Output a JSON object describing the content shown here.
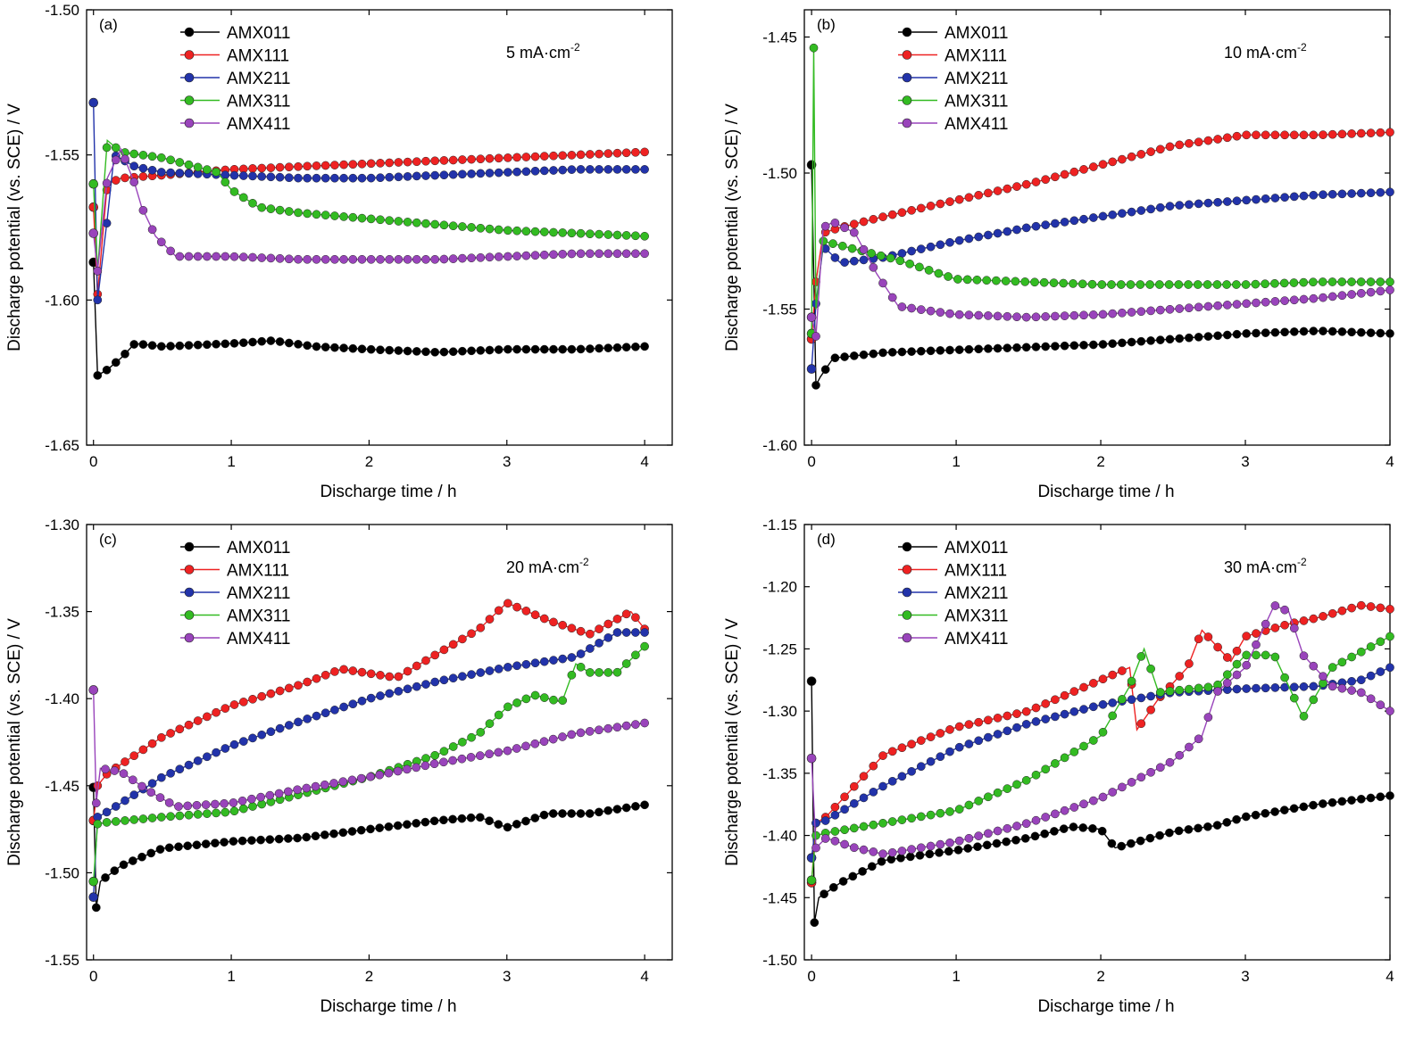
{
  "colors": {
    "AMX011": "#000000",
    "AMX111": "#ee2222",
    "AMX211": "#2233aa",
    "AMX311": "#33bb22",
    "AMX411": "#9944bb"
  },
  "chart_data": [
    {
      "type": "line",
      "panel_label": "(a)",
      "current_density": {
        "base": "5 mA·cm",
        "exponent": "-2"
      },
      "xlabel": "Discharge time / h",
      "ylabel": "Discharge potential (vs. SCE) / V",
      "xlim": [
        -0.05,
        4.2
      ],
      "ylim": [
        -1.65,
        -1.5
      ],
      "xticks": [
        0,
        1,
        2,
        3,
        4
      ],
      "yticks": [
        -1.65,
        -1.6,
        -1.55,
        -1.5
      ],
      "xtick_labels": [
        "0",
        "1",
        "2",
        "3",
        "4"
      ],
      "ytick_labels": [
        "-1.65",
        "-1.60",
        "-1.55",
        "-1.50"
      ],
      "legend_position": "top-left",
      "series": [
        {
          "name": "AMX011",
          "x": [
            0,
            0.03,
            0.1,
            0.2,
            0.3,
            0.5,
            1.0,
            1.3,
            1.6,
            2.0,
            2.5,
            3.0,
            3.5,
            4.0
          ],
          "y": [
            -1.587,
            -1.626,
            -1.624,
            -1.62,
            -1.615,
            -1.616,
            -1.615,
            -1.614,
            -1.616,
            -1.617,
            -1.618,
            -1.617,
            -1.617,
            -1.616
          ]
        },
        {
          "name": "AMX111",
          "x": [
            0,
            0.03,
            0.1,
            0.2,
            0.5,
            1.0,
            1.5,
            2.0,
            2.5,
            3.0,
            3.5,
            4.0
          ],
          "y": [
            -1.568,
            -1.598,
            -1.56,
            -1.558,
            -1.557,
            -1.555,
            -1.554,
            -1.553,
            -1.552,
            -1.551,
            -1.55,
            -1.549
          ]
        },
        {
          "name": "AMX211",
          "x": [
            0,
            0.03,
            0.1,
            0.15,
            0.3,
            0.5,
            1.0,
            1.5,
            2.0,
            2.5,
            3.0,
            3.5,
            4.0
          ],
          "y": [
            -1.532,
            -1.6,
            -1.572,
            -1.55,
            -1.554,
            -1.556,
            -1.557,
            -1.558,
            -1.558,
            -1.557,
            -1.556,
            -1.555,
            -1.555
          ]
        },
        {
          "name": "AMX311",
          "x": [
            0,
            0.03,
            0.1,
            0.2,
            0.5,
            0.9,
            1.0,
            1.2,
            1.5,
            2.0,
            2.5,
            3.0,
            3.5,
            4.0
          ],
          "y": [
            -1.56,
            -1.59,
            -1.545,
            -1.549,
            -1.551,
            -1.556,
            -1.562,
            -1.568,
            -1.57,
            -1.572,
            -1.574,
            -1.576,
            -1.577,
            -1.578
          ]
        },
        {
          "name": "AMX411",
          "x": [
            0,
            0.03,
            0.1,
            0.2,
            0.3,
            0.35,
            0.45,
            0.6,
            1.0,
            1.5,
            2.0,
            2.5,
            3.0,
            3.5,
            4.0
          ],
          "y": [
            -1.577,
            -1.59,
            -1.558,
            -1.548,
            -1.56,
            -1.568,
            -1.578,
            -1.585,
            -1.585,
            -1.586,
            -1.586,
            -1.586,
            -1.585,
            -1.584,
            -1.584
          ]
        }
      ]
    },
    {
      "type": "line",
      "panel_label": "(b)",
      "current_density": {
        "base": "10 mA·cm",
        "exponent": "-2"
      },
      "xlabel": "Discharge time / h",
      "ylabel": "Discharge potential (vs. SCE) / V",
      "xlim": [
        -0.05,
        4.0
      ],
      "ylim": [
        -1.6,
        -1.44
      ],
      "xticks": [
        0,
        1,
        2,
        3,
        4
      ],
      "yticks": [
        -1.6,
        -1.55,
        -1.5,
        -1.45
      ],
      "xtick_labels": [
        "0",
        "1",
        "2",
        "3",
        "4"
      ],
      "ytick_labels": [
        "-1.60",
        "-1.55",
        "-1.50",
        "-1.45"
      ],
      "legend_position": "top-left",
      "series": [
        {
          "name": "AMX011",
          "x": [
            0,
            0.03,
            0.06,
            0.15,
            0.5,
            1.0,
            1.5,
            2.0,
            2.5,
            3.0,
            3.5,
            4.0
          ],
          "y": [
            -1.497,
            -1.578,
            -1.575,
            -1.568,
            -1.566,
            -1.565,
            -1.564,
            -1.563,
            -1.561,
            -1.559,
            -1.558,
            -1.559
          ]
        },
        {
          "name": "AMX111",
          "x": [
            0,
            0.03,
            0.08,
            0.2,
            0.5,
            1.0,
            1.5,
            2.0,
            2.5,
            3.0,
            3.5,
            4.0
          ],
          "y": [
            -1.561,
            -1.54,
            -1.522,
            -1.52,
            -1.516,
            -1.51,
            -1.504,
            -1.497,
            -1.49,
            -1.486,
            -1.486,
            -1.485
          ]
        },
        {
          "name": "AMX211",
          "x": [
            0,
            0.03,
            0.08,
            0.2,
            0.5,
            1.0,
            1.5,
            2.0,
            2.5,
            3.0,
            3.5,
            4.0
          ],
          "y": [
            -1.572,
            -1.548,
            -1.527,
            -1.533,
            -1.531,
            -1.525,
            -1.52,
            -1.516,
            -1.512,
            -1.51,
            -1.508,
            -1.507
          ]
        },
        {
          "name": "AMX311",
          "x": [
            0,
            0.015,
            0.03,
            0.08,
            0.3,
            0.6,
            1.0,
            1.5,
            2.0,
            2.5,
            3.0,
            3.5,
            4.0
          ],
          "y": [
            -1.559,
            -1.454,
            -1.55,
            -1.525,
            -1.528,
            -1.532,
            -1.539,
            -1.54,
            -1.541,
            -1.541,
            -1.541,
            -1.54,
            -1.54
          ]
        },
        {
          "name": "AMX411",
          "x": [
            0,
            0.03,
            0.08,
            0.15,
            0.3,
            0.45,
            0.6,
            1.0,
            1.5,
            2.0,
            2.5,
            3.0,
            3.5,
            4.0
          ],
          "y": [
            -1.553,
            -1.56,
            -1.52,
            -1.518,
            -1.522,
            -1.537,
            -1.549,
            -1.552,
            -1.553,
            -1.552,
            -1.55,
            -1.548,
            -1.546,
            -1.543
          ]
        }
      ]
    },
    {
      "type": "line",
      "panel_label": "(c)",
      "current_density": {
        "base": "20 mA·cm",
        "exponent": "-2"
      },
      "xlabel": "Discharge time / h",
      "ylabel": "Discharge potential (vs. SCE) / V",
      "xlim": [
        -0.05,
        4.2
      ],
      "ylim": [
        -1.55,
        -1.3
      ],
      "xticks": [
        0,
        1,
        2,
        3,
        4
      ],
      "yticks": [
        -1.55,
        -1.5,
        -1.45,
        -1.4,
        -1.35,
        -1.3
      ],
      "xtick_labels": [
        "0",
        "1",
        "2",
        "3",
        "4"
      ],
      "ytick_labels": [
        "-1.55",
        "-1.50",
        "-1.45",
        "-1.40",
        "-1.35",
        "-1.30"
      ],
      "legend_position": "top-left",
      "series": [
        {
          "name": "AMX011",
          "x": [
            0,
            0.02,
            0.05,
            0.2,
            0.5,
            1.0,
            1.5,
            2.0,
            2.5,
            2.8,
            3.0,
            3.3,
            3.6,
            4.0
          ],
          "y": [
            -1.451,
            -1.52,
            -1.505,
            -1.496,
            -1.486,
            -1.482,
            -1.48,
            -1.475,
            -1.47,
            -1.468,
            -1.474,
            -1.466,
            -1.466,
            -1.461
          ]
        },
        {
          "name": "AMX111",
          "x": [
            0,
            0.03,
            0.1,
            0.5,
            1.0,
            1.5,
            1.8,
            2.2,
            2.5,
            2.8,
            3.0,
            3.3,
            3.6,
            3.9,
            4.0
          ],
          "y": [
            -1.47,
            -1.45,
            -1.443,
            -1.422,
            -1.404,
            -1.392,
            -1.383,
            -1.388,
            -1.374,
            -1.36,
            -1.345,
            -1.355,
            -1.363,
            -1.35,
            -1.36
          ]
        },
        {
          "name": "AMX211",
          "x": [
            0,
            0.03,
            0.1,
            0.5,
            1.0,
            1.5,
            2.0,
            2.5,
            3.0,
            3.5,
            3.8,
            4.0
          ],
          "y": [
            -1.514,
            -1.468,
            -1.465,
            -1.445,
            -1.427,
            -1.413,
            -1.4,
            -1.39,
            -1.382,
            -1.376,
            -1.362,
            -1.362
          ]
        },
        {
          "name": "AMX311",
          "x": [
            0,
            0.03,
            0.1,
            0.5,
            1.0,
            1.5,
            2.0,
            2.5,
            2.8,
            3.0,
            3.2,
            3.4,
            3.5,
            3.6,
            3.8,
            4.0
          ],
          "y": [
            -1.505,
            -1.472,
            -1.471,
            -1.468,
            -1.465,
            -1.455,
            -1.445,
            -1.432,
            -1.42,
            -1.405,
            -1.398,
            -1.402,
            -1.38,
            -1.385,
            -1.385,
            -1.37
          ]
        },
        {
          "name": "AMX411",
          "x": [
            0,
            0.02,
            0.05,
            0.2,
            0.4,
            0.6,
            1.0,
            1.5,
            2.0,
            2.5,
            3.0,
            3.5,
            4.0
          ],
          "y": [
            -1.395,
            -1.46,
            -1.44,
            -1.442,
            -1.453,
            -1.462,
            -1.46,
            -1.452,
            -1.445,
            -1.437,
            -1.43,
            -1.42,
            -1.414
          ]
        }
      ]
    },
    {
      "type": "line",
      "panel_label": "(d)",
      "current_density": {
        "base": "30 mA·cm",
        "exponent": "-2"
      },
      "xlabel": "Discharge time / h",
      "ylabel": "Discharge potential (vs. SCE) / V",
      "xlim": [
        -0.05,
        4.0
      ],
      "ylim": [
        -1.5,
        -1.15
      ],
      "xticks": [
        0,
        1,
        2,
        3,
        4
      ],
      "yticks": [
        -1.5,
        -1.45,
        -1.4,
        -1.35,
        -1.3,
        -1.25,
        -1.2,
        -1.15
      ],
      "xtick_labels": [
        "0",
        "1",
        "2",
        "3",
        "4"
      ],
      "ytick_labels": [
        "-1.50",
        "-1.45",
        "-1.40",
        "-1.35",
        "-1.30",
        "-1.25",
        "-1.20",
        "-1.15"
      ],
      "legend_position": "top-left",
      "series": [
        {
          "name": "AMX011",
          "x": [
            0,
            0.02,
            0.05,
            0.2,
            0.5,
            1.0,
            1.5,
            1.8,
            2.0,
            2.1,
            2.5,
            2.8,
            3.0,
            3.5,
            4.0
          ],
          "y": [
            -1.276,
            -1.47,
            -1.45,
            -1.438,
            -1.42,
            -1.412,
            -1.402,
            -1.393,
            -1.395,
            -1.41,
            -1.397,
            -1.392,
            -1.385,
            -1.375,
            -1.368
          ]
        },
        {
          "name": "AMX111",
          "x": [
            0,
            0.03,
            0.1,
            0.5,
            1.0,
            1.5,
            2.0,
            2.2,
            2.25,
            2.4,
            2.6,
            2.7,
            2.9,
            3.0,
            3.3,
            3.5,
            3.8,
            4.0
          ],
          "y": [
            -1.438,
            -1.39,
            -1.385,
            -1.335,
            -1.313,
            -1.3,
            -1.275,
            -1.265,
            -1.315,
            -1.29,
            -1.265,
            -1.235,
            -1.26,
            -1.24,
            -1.23,
            -1.225,
            -1.215,
            -1.218
          ]
        },
        {
          "name": "AMX211",
          "x": [
            0,
            0.03,
            0.1,
            0.5,
            1.0,
            1.5,
            2.0,
            2.5,
            3.0,
            3.5,
            3.8,
            4.0
          ],
          "y": [
            -1.418,
            -1.39,
            -1.388,
            -1.36,
            -1.33,
            -1.31,
            -1.295,
            -1.285,
            -1.282,
            -1.28,
            -1.275,
            -1.265
          ]
        },
        {
          "name": "AMX311",
          "x": [
            0,
            0.03,
            0.1,
            0.5,
            1.0,
            1.5,
            2.0,
            2.2,
            2.3,
            2.4,
            2.8,
            3.0,
            3.2,
            3.4,
            3.6,
            4.0
          ],
          "y": [
            -1.436,
            -1.4,
            -1.398,
            -1.39,
            -1.38,
            -1.355,
            -1.32,
            -1.28,
            -1.25,
            -1.285,
            -1.28,
            -1.255,
            -1.255,
            -1.305,
            -1.265,
            -1.24
          ]
        },
        {
          "name": "AMX411",
          "x": [
            0,
            0.03,
            0.1,
            0.3,
            0.5,
            1.0,
            1.5,
            2.0,
            2.5,
            2.7,
            2.8,
            3.0,
            3.2,
            3.3,
            3.4,
            3.6,
            3.8,
            4.0
          ],
          "y": [
            -1.338,
            -1.41,
            -1.402,
            -1.41,
            -1.415,
            -1.405,
            -1.39,
            -1.37,
            -1.34,
            -1.32,
            -1.285,
            -1.265,
            -1.215,
            -1.22,
            -1.255,
            -1.28,
            -1.285,
            -1.3
          ]
        }
      ]
    }
  ]
}
